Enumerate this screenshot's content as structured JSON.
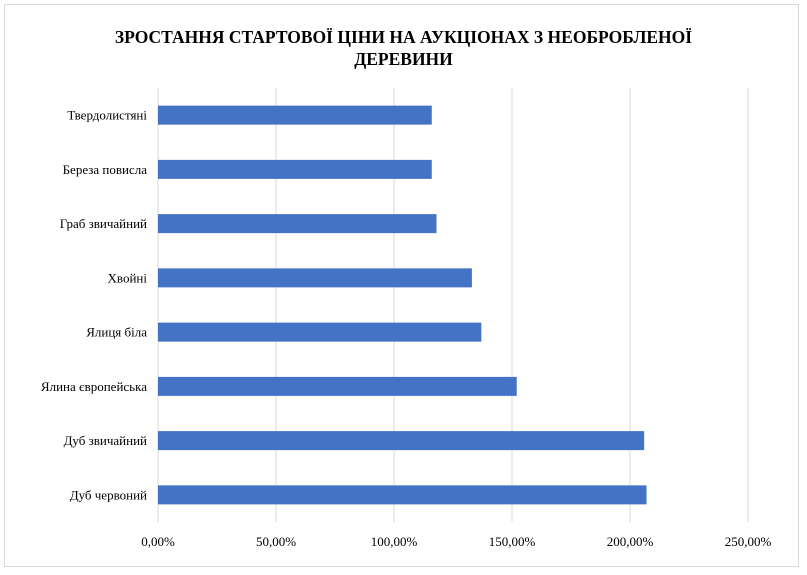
{
  "chart_data": {
    "type": "bar",
    "orientation": "horizontal",
    "title_lines": [
      "ЗРОСТАННЯ СТАРТОВОЇ ЦІНИ НА АУКЦІОНАХ З НЕОБРОБЛЕНОЇ",
      "ДЕРЕВИНИ"
    ],
    "categories": [
      "Твердолистяні",
      "Береза повисла",
      "Граб звичайний",
      "Хвойні",
      "Ялиця біла",
      "Ялина європейська",
      "Дуб звичайний",
      "Дуб червоний"
    ],
    "values": [
      116,
      116,
      118,
      133,
      137,
      152,
      206,
      207
    ],
    "value_unit": "%",
    "xlim": [
      0,
      250
    ],
    "x_ticks": [
      0,
      50,
      100,
      150,
      200,
      250
    ],
    "x_tick_labels": [
      "0,00%",
      "50,00%",
      "100,00%",
      "150,00%",
      "200,00%",
      "250,00%"
    ],
    "xlabel": "",
    "ylabel": "",
    "grid": "vertical",
    "legend": "none",
    "bar_color": "#4472c4",
    "grid_color": "#d9d9d9"
  }
}
